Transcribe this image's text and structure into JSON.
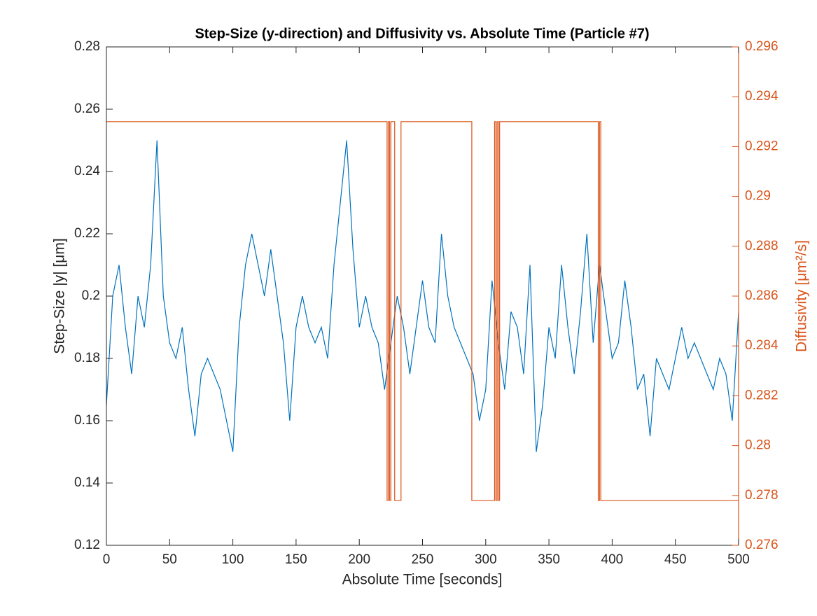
{
  "chart_data": {
    "type": "line",
    "title": "Step-Size (y-direction) and Diffusivity vs. Absolute Time (Particle #7)",
    "xlabel": "Absolute Time [seconds]",
    "ylabel": "Step-Size |y| [μm]",
    "y2label": "Diffusivity [μm²/s]",
    "xlim": [
      0,
      500
    ],
    "xticks": [
      0,
      50,
      100,
      150,
      200,
      250,
      300,
      350,
      400,
      450,
      500
    ],
    "ylim": [
      0.12,
      0.28
    ],
    "yticks": [
      0.12,
      0.14,
      0.16,
      0.18,
      0.2,
      0.22,
      0.24,
      0.26,
      0.28
    ],
    "y2lim": [
      0.276,
      0.296
    ],
    "y2ticks": [
      0.276,
      0.278,
      0.28,
      0.282,
      0.284,
      0.286,
      0.288,
      0.29,
      0.292,
      0.294,
      0.296
    ],
    "series": [
      {
        "color": "#0072BD",
        "x": [
          0,
          5,
          10,
          15,
          20,
          25,
          30,
          35,
          40,
          45,
          50,
          55,
          60,
          65,
          70,
          75,
          80,
          85,
          90,
          95,
          100,
          105,
          110,
          115,
          120,
          125,
          130,
          135,
          140,
          145,
          150,
          155,
          160,
          165,
          170,
          175,
          180,
          185,
          190,
          195,
          200,
          205,
          210,
          215,
          220,
          225,
          230,
          235,
          240,
          245,
          250,
          255,
          260,
          265,
          270,
          275,
          280,
          285,
          290,
          295,
          300,
          305,
          310,
          315,
          320,
          325,
          330,
          335,
          340,
          345,
          350,
          355,
          360,
          365,
          370,
          375,
          380,
          385,
          390,
          395,
          400,
          405,
          410,
          415,
          420,
          425,
          430,
          435,
          440,
          445,
          450,
          455,
          460,
          465,
          470,
          475,
          480,
          485,
          490,
          495,
          500
        ],
        "values": [
          0.165,
          0.2,
          0.21,
          0.19,
          0.175,
          0.2,
          0.19,
          0.21,
          0.25,
          0.2,
          0.185,
          0.18,
          0.19,
          0.17,
          0.155,
          0.175,
          0.18,
          0.175,
          0.17,
          0.16,
          0.15,
          0.19,
          0.21,
          0.22,
          0.21,
          0.2,
          0.215,
          0.2,
          0.185,
          0.16,
          0.19,
          0.2,
          0.19,
          0.185,
          0.19,
          0.18,
          0.21,
          0.23,
          0.25,
          0.215,
          0.19,
          0.2,
          0.19,
          0.185,
          0.17,
          0.185,
          0.2,
          0.19,
          0.175,
          0.19,
          0.205,
          0.19,
          0.185,
          0.22,
          0.2,
          0.19,
          0.185,
          0.18,
          0.175,
          0.16,
          0.17,
          0.205,
          0.185,
          0.17,
          0.195,
          0.19,
          0.175,
          0.21,
          0.15,
          0.165,
          0.19,
          0.18,
          0.21,
          0.19,
          0.175,
          0.195,
          0.22,
          0.185,
          0.21,
          0.195,
          0.18,
          0.185,
          0.205,
          0.19,
          0.17,
          0.175,
          0.155,
          0.18,
          0.175,
          0.17,
          0.18,
          0.19,
          0.18,
          0.185,
          0.18,
          0.175,
          0.17,
          0.18,
          0.175,
          0.16,
          0.195
        ]
      },
      {
        "color": "#D95319",
        "axis": "y2",
        "x": [
          0,
          222,
          222,
          223,
          223,
          224,
          224,
          225,
          225,
          228,
          228,
          233,
          233,
          289,
          289,
          307,
          307,
          308,
          308,
          309,
          309,
          310,
          310,
          311,
          311,
          389,
          389,
          390,
          390,
          391,
          391,
          500
        ],
        "values": [
          0.293,
          0.293,
          0.2778,
          0.2778,
          0.293,
          0.293,
          0.2778,
          0.2778,
          0.293,
          0.293,
          0.2778,
          0.2778,
          0.293,
          0.293,
          0.2778,
          0.2778,
          0.293,
          0.293,
          0.2778,
          0.2778,
          0.293,
          0.293,
          0.2778,
          0.2778,
          0.293,
          0.293,
          0.2778,
          0.2778,
          0.293,
          0.293,
          0.2778,
          0.2778
        ]
      }
    ]
  }
}
